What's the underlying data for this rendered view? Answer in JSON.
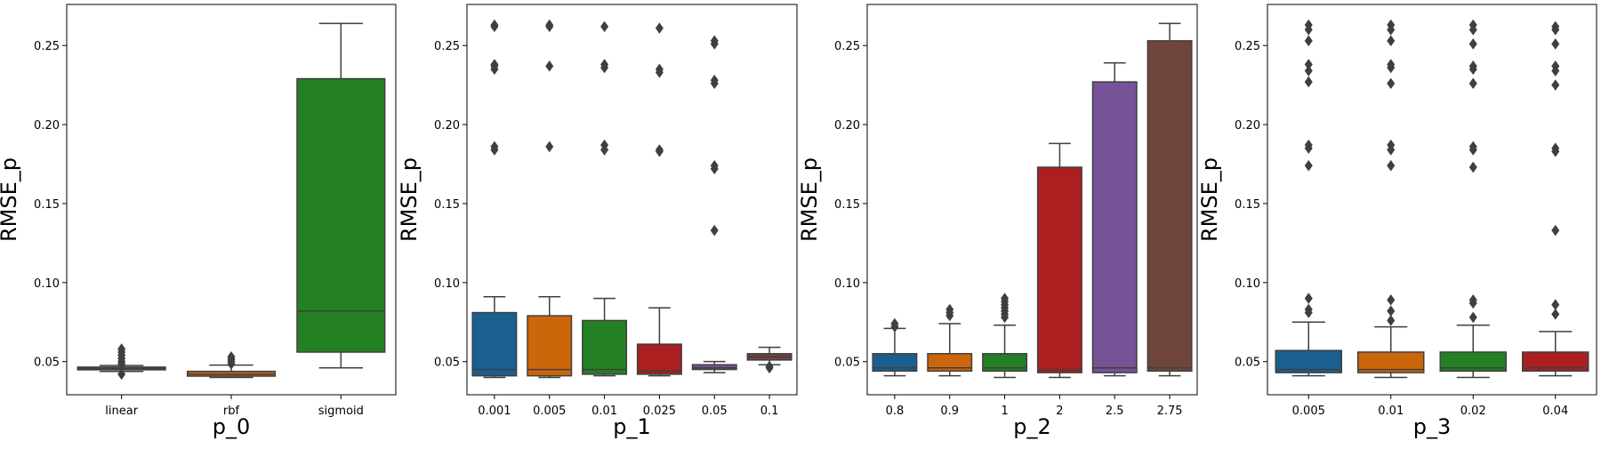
{
  "chart_data": [
    {
      "type": "box",
      "xlabel": "p_0",
      "ylabel": "RMSE_p",
      "ylim": [
        0.029,
        0.276
      ],
      "yticks": [
        0.05,
        0.1,
        0.15,
        0.2,
        0.25
      ],
      "ytick_labels": [
        "0.05",
        "0.10",
        "0.15",
        "0.20",
        "0.25"
      ],
      "categories": [
        "linear",
        "rbf",
        "sigmoid"
      ],
      "boxes": [
        {
          "category": "linear",
          "color": "#1f77b4",
          "q1": 0.0448,
          "median": 0.0455,
          "q3": 0.0465,
          "whisker_low": 0.0438,
          "whisker_high": 0.0475,
          "outliers": [
            0.042,
            0.0485,
            0.05,
            0.052,
            0.054,
            0.056,
            0.058
          ]
        },
        {
          "category": "rbf",
          "color": "#ff7f0e",
          "q1": 0.0408,
          "median": 0.042,
          "q3": 0.0438,
          "whisker_low": 0.04,
          "whisker_high": 0.0478,
          "outliers": [
            0.0485,
            0.05,
            0.0515,
            0.053
          ]
        },
        {
          "category": "sigmoid",
          "color": "#2ca02c",
          "q1": 0.056,
          "median": 0.082,
          "q3": 0.229,
          "whisker_low": 0.046,
          "whisker_high": 0.264,
          "outliers": []
        }
      ]
    },
    {
      "type": "box",
      "xlabel": "p_1",
      "ylabel": "RMSE_p",
      "ylim": [
        0.029,
        0.276
      ],
      "yticks": [
        0.05,
        0.1,
        0.15,
        0.2,
        0.25
      ],
      "ytick_labels": [
        "0.05",
        "0.10",
        "0.15",
        "0.20",
        "0.25"
      ],
      "categories": [
        "0.001",
        "0.005",
        "0.01",
        "0.025",
        "0.05",
        "0.1"
      ],
      "boxes": [
        {
          "category": "0.001",
          "color": "#1f77b4",
          "q1": 0.041,
          "median": 0.045,
          "q3": 0.081,
          "whisker_low": 0.04,
          "whisker_high": 0.091,
          "outliers": [
            0.184,
            0.186,
            0.235,
            0.237,
            0.238,
            0.262,
            0.263
          ]
        },
        {
          "category": "0.005",
          "color": "#ff7f0e",
          "q1": 0.041,
          "median": 0.045,
          "q3": 0.079,
          "whisker_low": 0.04,
          "whisker_high": 0.091,
          "outliers": [
            0.186,
            0.237,
            0.262,
            0.263
          ]
        },
        {
          "category": "0.01",
          "color": "#2ca02c",
          "q1": 0.042,
          "median": 0.045,
          "q3": 0.076,
          "whisker_low": 0.041,
          "whisker_high": 0.09,
          "outliers": [
            0.184,
            0.187,
            0.236,
            0.238,
            0.262
          ]
        },
        {
          "category": "0.025",
          "color": "#d62728",
          "q1": 0.042,
          "median": 0.044,
          "q3": 0.061,
          "whisker_low": 0.041,
          "whisker_high": 0.084,
          "outliers": [
            0.183,
            0.184,
            0.233,
            0.235,
            0.261
          ]
        },
        {
          "category": "0.05",
          "color": "#9467bd",
          "q1": 0.045,
          "median": 0.046,
          "q3": 0.048,
          "whisker_low": 0.043,
          "whisker_high": 0.05,
          "outliers": [
            0.133,
            0.172,
            0.174,
            0.226,
            0.228,
            0.251,
            0.253
          ]
        },
        {
          "category": "0.1",
          "color": "#8c564b",
          "q1": 0.051,
          "median": 0.053,
          "q3": 0.055,
          "whisker_low": 0.048,
          "whisker_high": 0.059,
          "outliers": [
            0.046,
            0.047
          ]
        }
      ]
    },
    {
      "type": "box",
      "xlabel": "p_2",
      "ylabel": "RMSE_p",
      "ylim": [
        0.029,
        0.276
      ],
      "yticks": [
        0.05,
        0.1,
        0.15,
        0.2,
        0.25
      ],
      "ytick_labels": [
        "0.05",
        "0.10",
        "0.15",
        "0.20",
        "0.25"
      ],
      "categories": [
        "0.8",
        "0.9",
        "1",
        "2",
        "2.5",
        "2.75"
      ],
      "boxes": [
        {
          "category": "0.8",
          "color": "#1f77b4",
          "q1": 0.044,
          "median": 0.046,
          "q3": 0.055,
          "whisker_low": 0.041,
          "whisker_high": 0.071,
          "outliers": [
            0.072,
            0.074
          ]
        },
        {
          "category": "0.9",
          "color": "#ff7f0e",
          "q1": 0.044,
          "median": 0.046,
          "q3": 0.055,
          "whisker_low": 0.041,
          "whisker_high": 0.074,
          "outliers": [
            0.079,
            0.081,
            0.083
          ]
        },
        {
          "category": "1",
          "color": "#2ca02c",
          "q1": 0.044,
          "median": 0.046,
          "q3": 0.055,
          "whisker_low": 0.04,
          "whisker_high": 0.073,
          "outliers": [
            0.078,
            0.08,
            0.082,
            0.084,
            0.086,
            0.088,
            0.09
          ]
        },
        {
          "category": "2",
          "color": "#d62728",
          "q1": 0.043,
          "median": 0.045,
          "q3": 0.173,
          "whisker_low": 0.04,
          "whisker_high": 0.188,
          "outliers": []
        },
        {
          "category": "2.5",
          "color": "#9467bd",
          "q1": 0.043,
          "median": 0.046,
          "q3": 0.227,
          "whisker_low": 0.041,
          "whisker_high": 0.239,
          "outliers": []
        },
        {
          "category": "2.75",
          "color": "#8c564b",
          "q1": 0.044,
          "median": 0.046,
          "q3": 0.253,
          "whisker_low": 0.041,
          "whisker_high": 0.264,
          "outliers": []
        }
      ]
    },
    {
      "type": "box",
      "xlabel": "p_3",
      "ylabel": "RMSE_p",
      "ylim": [
        0.029,
        0.276
      ],
      "yticks": [
        0.05,
        0.1,
        0.15,
        0.2,
        0.25
      ],
      "ytick_labels": [
        "0.05",
        "0.10",
        "0.15",
        "0.20",
        "0.25"
      ],
      "categories": [
        "0.005",
        "0.01",
        "0.02",
        "0.04"
      ],
      "boxes": [
        {
          "category": "0.005",
          "color": "#1f77b4",
          "q1": 0.043,
          "median": 0.045,
          "q3": 0.057,
          "whisker_low": 0.041,
          "whisker_high": 0.075,
          "outliers": [
            0.081,
            0.083,
            0.09,
            0.174,
            0.185,
            0.187,
            0.227,
            0.234,
            0.238,
            0.253,
            0.26,
            0.263
          ]
        },
        {
          "category": "0.01",
          "color": "#ff7f0e",
          "q1": 0.043,
          "median": 0.045,
          "q3": 0.056,
          "whisker_low": 0.04,
          "whisker_high": 0.072,
          "outliers": [
            0.076,
            0.082,
            0.089,
            0.174,
            0.184,
            0.187,
            0.226,
            0.236,
            0.238,
            0.253,
            0.26,
            0.263
          ]
        },
        {
          "category": "0.02",
          "color": "#2ca02c",
          "q1": 0.044,
          "median": 0.046,
          "q3": 0.056,
          "whisker_low": 0.04,
          "whisker_high": 0.073,
          "outliers": [
            0.078,
            0.087,
            0.089,
            0.173,
            0.184,
            0.186,
            0.226,
            0.235,
            0.237,
            0.251,
            0.26,
            0.263
          ]
        },
        {
          "category": "0.04",
          "color": "#d62728",
          "q1": 0.044,
          "median": 0.046,
          "q3": 0.056,
          "whisker_low": 0.041,
          "whisker_high": 0.069,
          "outliers": [
            0.08,
            0.086,
            0.133,
            0.183,
            0.185,
            0.225,
            0.234,
            0.237,
            0.251,
            0.26,
            0.262
          ]
        }
      ]
    }
  ]
}
